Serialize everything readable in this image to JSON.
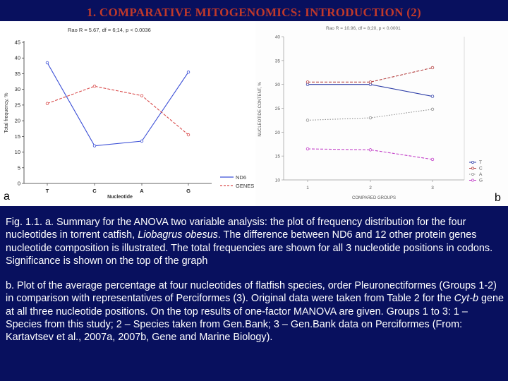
{
  "slide": {
    "title": "1. COMPARATIVE MITOGENOMICS: INTRODUCTION (2)"
  },
  "panel_a": {
    "letter": "a",
    "stat_text": "Rao R = 5.67, df = 6;14, p < 0.0036",
    "legend": [
      "ND6",
      "GENES"
    ]
  },
  "panel_b": {
    "letter": "b",
    "stat_text": "Rao R = 10.96, df = 8;20, p < 0.0001",
    "legend": [
      "T",
      "C",
      "A",
      "G"
    ]
  },
  "chart_data": [
    {
      "type": "line",
      "title": "",
      "xlabel": "Nucleotide",
      "ylabel": "Total frequency, %",
      "categories": [
        "T",
        "C",
        "A",
        "G"
      ],
      "ylim": [
        0,
        45
      ],
      "yticks": [
        0,
        5,
        10,
        15,
        20,
        25,
        30,
        35,
        40,
        45
      ],
      "grid": false,
      "legend_position": "bottom-right",
      "series": [
        {
          "name": "ND6",
          "values": [
            38.5,
            12.0,
            13.5,
            35.5
          ],
          "color": "#3b4fd6",
          "dash": "solid"
        },
        {
          "name": "GENES",
          "values": [
            25.5,
            31.0,
            28.0,
            15.5
          ],
          "color": "#d94b4b",
          "dash": "dashed"
        }
      ]
    },
    {
      "type": "line",
      "title": "",
      "xlabel": "COMPARED GROUPS",
      "ylabel": "NUCLEOTIDE CONTENT, %",
      "categories": [
        "1",
        "2",
        "3"
      ],
      "ylim": [
        10,
        40
      ],
      "yticks": [
        10,
        15,
        20,
        25,
        30,
        35,
        40
      ],
      "grid": false,
      "legend_position": "right",
      "series": [
        {
          "name": "T",
          "values": [
            30.0,
            30.0,
            27.5
          ],
          "color": "#2f3fa8",
          "dash": "solid"
        },
        {
          "name": "C",
          "values": [
            30.5,
            30.5,
            33.5
          ],
          "color": "#b54242",
          "dash": "dashed"
        },
        {
          "name": "A",
          "values": [
            22.5,
            23.0,
            24.8
          ],
          "color": "#8f8f8f",
          "dash": "dotted"
        },
        {
          "name": "G",
          "values": [
            16.5,
            16.3,
            14.3
          ],
          "color": "#c23fc8",
          "dash": "dashed"
        }
      ]
    }
  ],
  "caption": {
    "a_before": "Fig. 1.1. a. Summary for the ANOVA two variable analysis: the plot of frequency distribution for the four nucleotides in torrent catfish, ",
    "a_italic": "Liobagrus obesus",
    "a_after": ". The difference between ND6 and 12 other protein genes nucleotide composition is illustrated. The total frequencies are shown for all 3 nucleotide positions in codons. Significance is shown on the top of the graph",
    "b_before": "b. Plot of the average percentage at four nucleotides of flatfish species, order Pleuronectiformes (Groups 1-2) in comparison with representatives of Perciformes (3). Original data were taken from Table 2 for the ",
    "b_italic": "Cyt-b",
    "b_after": " gene at all three nucleotide positions. On the top results of one-factor MANOVA are given. Groups 1 to 3: 1 – Species from this study; 2 – Species taken from Gen.Bank; 3 – Gen.Bank data on Perciformes (From: Kartavtsev et al., 2007a, 2007b, Gene and Marine Biology)."
  }
}
